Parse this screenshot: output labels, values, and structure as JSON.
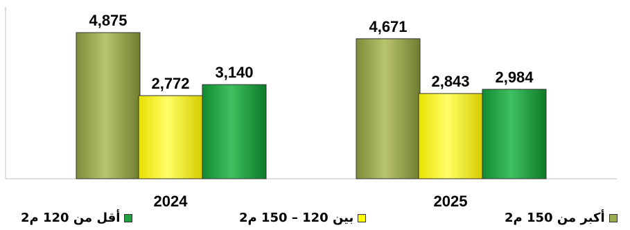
{
  "chart_data": {
    "type": "bar",
    "categories": [
      "2024",
      "2025"
    ],
    "series": [
      {
        "name": "أكبر من 150 م2",
        "values": [
          4875,
          4671
        ],
        "color": "#9bab4f"
      },
      {
        "name": "بين 120 – 150 م2",
        "values": [
          2772,
          2843
        ],
        "color": "#ffff00"
      },
      {
        "name": "أقل من 120 م2",
        "values": [
          3140,
          2984
        ],
        "color": "#20a040"
      }
    ],
    "data_labels": [
      [
        "4,875",
        "4,671"
      ],
      [
        "2,772",
        "2,843"
      ],
      [
        "3,140",
        "2,984"
      ]
    ],
    "ylim": [
      0,
      5500
    ],
    "grid": false,
    "legend_position": "bottom"
  },
  "legend": {
    "items": [
      {
        "label": "أقل من 120 م2",
        "color": "#20a040"
      },
      {
        "label": "بين 120 – 150 م2",
        "color": "#ffff00"
      },
      {
        "label": "أكبر من 150 م2",
        "color": "#9bab4f"
      }
    ]
  }
}
